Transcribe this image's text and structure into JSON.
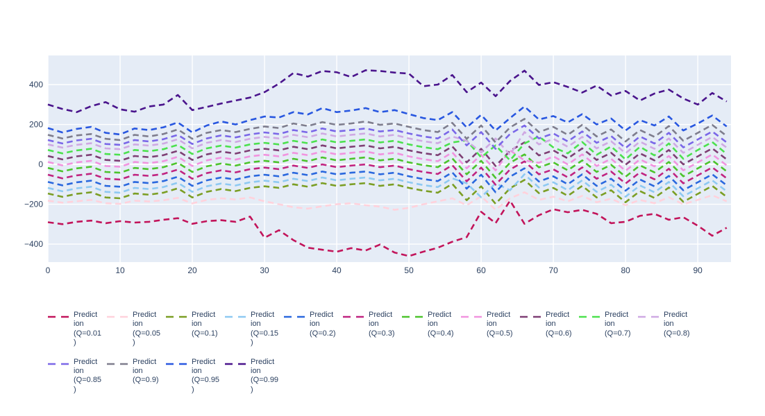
{
  "chart_data": {
    "type": "line",
    "title": "",
    "xlabel": "",
    "ylabel": "",
    "x_start": 0,
    "x_step": 2,
    "xlim": [
      0,
      94.6
    ],
    "ylim": [
      -490,
      546
    ],
    "x_ticks": [
      0,
      10,
      20,
      30,
      40,
      50,
      60,
      70,
      80,
      90
    ],
    "y_ticks": [
      400,
      200,
      0,
      -200,
      -400
    ],
    "grid": true,
    "legend_position": "bottom",
    "plot_bg_color": "#e5ecf6",
    "grid_color": "#ffffff",
    "tick_color": "#2a3f5f",
    "line_style": "dash",
    "series": [
      {
        "name": "Prediction (Q=0.01)",
        "quantile": 0.01,
        "color": "#c2145a",
        "legend_lines": [
          "Predict",
          "ion",
          "(Q=0.01",
          ")"
        ],
        "values": [
          -290,
          -300,
          -288,
          -282,
          -295,
          -285,
          -292,
          -288,
          -278,
          -270,
          -298,
          -285,
          -280,
          -288,
          -262,
          -368,
          -330,
          -380,
          -418,
          -428,
          -438,
          -420,
          -432,
          -402,
          -442,
          -460,
          -438,
          -418,
          -388,
          -365,
          -238,
          -295,
          -182,
          -298,
          -255,
          -225,
          -240,
          -228,
          -248,
          -295,
          -288,
          -258,
          -248,
          -278,
          -265,
          -308,
          -358,
          -318
        ]
      },
      {
        "name": "Prediction (Q=0.05)",
        "quantile": 0.05,
        "color": "#ffd2dc",
        "legend_lines": [
          "Predict",
          "ion",
          "(Q=0.05",
          ")"
        ],
        "values": [
          -182,
          -192,
          -185,
          -178,
          -195,
          -198,
          -182,
          -186,
          -180,
          -168,
          -196,
          -178,
          -170,
          -176,
          -166,
          -185,
          -200,
          -215,
          -222,
          -210,
          -200,
          -195,
          -205,
          -212,
          -228,
          -218,
          -200,
          -185,
          -170,
          -205,
          -160,
          -228,
          -170,
          -140,
          -178,
          -162,
          -185,
          -158,
          -190,
          -172,
          -205,
          -178,
          -195,
          -165,
          -200,
          -178,
          -155,
          -185
        ]
      },
      {
        "name": "Prediction (Q=0.1)",
        "quantile": 0.1,
        "color": "#7b9e24",
        "legend_lines": [
          "Predict",
          "ion",
          "(Q=0.1)"
        ],
        "values": [
          -146,
          -163,
          -148,
          -140,
          -166,
          -170,
          -146,
          -152,
          -142,
          -120,
          -166,
          -138,
          -124,
          -134,
          -118,
          -110,
          -118,
          -100,
          -112,
          -94,
          -108,
          -100,
          -94,
          -108,
          -100,
          -118,
          -132,
          -142,
          -98,
          -180,
          -110,
          -198,
          -120,
          -78,
          -144,
          -118,
          -158,
          -108,
          -166,
          -130,
          -190,
          -134,
          -168,
          -116,
          -188,
          -148,
          -108,
          -163
        ]
      },
      {
        "name": "Prediction (Q=0.15)",
        "quantile": 0.15,
        "color": "#8ec9f2",
        "legend_lines": [
          "Predict",
          "ion",
          "(Q=0.15",
          ")"
        ],
        "values": [
          -118,
          -135,
          -120,
          -112,
          -138,
          -142,
          -118,
          -124,
          -114,
          -92,
          -138,
          -110,
          -96,
          -106,
          -90,
          -82,
          -90,
          -72,
          -84,
          -66,
          -80,
          -72,
          -66,
          -80,
          -72,
          -90,
          -104,
          -114,
          -70,
          -95,
          -165,
          -95,
          -130,
          -50,
          -116,
          -90,
          -130,
          -80,
          -138,
          -102,
          -162,
          -106,
          -140,
          -88,
          -160,
          -120,
          -80,
          -135
        ]
      },
      {
        "name": "Prediction (Q=0.2)",
        "quantile": 0.2,
        "color": "#2a68de",
        "legend_lines": [
          "Predict",
          "ion",
          "(Q=0.2)"
        ],
        "values": [
          -88,
          -105,
          -90,
          -82,
          -108,
          -112,
          -88,
          -94,
          -84,
          -62,
          -108,
          -80,
          -66,
          -76,
          -60,
          -52,
          -60,
          -42,
          -54,
          -36,
          -50,
          -42,
          -36,
          -50,
          -42,
          -60,
          -74,
          -84,
          -40,
          -122,
          -52,
          -140,
          -62,
          -20,
          -86,
          -60,
          -100,
          -50,
          -108,
          -72,
          -132,
          -76,
          -110,
          -58,
          -130,
          -90,
          -50,
          -105
        ]
      },
      {
        "name": "Prediction (Q=0.3)",
        "quantile": 0.3,
        "color": "#c02480",
        "legend_lines": [
          "Predict",
          "ion",
          "(Q=0.3)"
        ],
        "values": [
          -52,
          -70,
          -55,
          -47,
          -72,
          -76,
          -52,
          -58,
          -48,
          -26,
          -72,
          -44,
          -30,
          -40,
          -24,
          -16,
          -24,
          -6,
          -18,
          0,
          -14,
          -6,
          0,
          -14,
          -6,
          -24,
          -38,
          -48,
          -4,
          -85,
          -16,
          -102,
          -26,
          15,
          -50,
          -25,
          -65,
          -15,
          -72,
          -36,
          -96,
          -40,
          -75,
          -22,
          -95,
          -55,
          -15,
          -70
        ]
      },
      {
        "name": "Prediction (Q=0.4)",
        "quantile": 0.4,
        "color": "#4cc42c",
        "legend_lines": [
          "Predict",
          "ion",
          "(Q=0.4)"
        ],
        "values": [
          -18,
          -35,
          -20,
          -12,
          -38,
          -42,
          -18,
          -24,
          -14,
          8,
          -38,
          -10,
          4,
          -6,
          10,
          18,
          10,
          28,
          16,
          35,
          20,
          28,
          35,
          20,
          28,
          10,
          -4,
          -14,
          30,
          -50,
          18,
          -68,
          8,
          50,
          -15,
          10,
          -30,
          20,
          -38,
          -2,
          -62,
          -5,
          -40,
          12,
          -60,
          -20,
          20,
          -35
        ]
      },
      {
        "name": "Prediction (Q=0.5)",
        "quantile": 0.5,
        "color": "#f193df",
        "legend_lines": [
          "Predict",
          "ion",
          "(Q=0.5)"
        ],
        "values": [
          12,
          -5,
          10,
          18,
          -8,
          -12,
          12,
          6,
          16,
          38,
          -8,
          20,
          34,
          24,
          40,
          48,
          40,
          58,
          46,
          65,
          50,
          58,
          65,
          50,
          58,
          40,
          26,
          16,
          60,
          -20,
          48,
          -30,
          70,
          20,
          8,
          40,
          0,
          50,
          -8,
          28,
          -32,
          25,
          -10,
          42,
          -30,
          10,
          50,
          -5
        ]
      },
      {
        "name": "Prediction (Q=0.6)",
        "quantile": 0.6,
        "color": "#7e3f74",
        "legend_lines": [
          "Predict",
          "ion",
          "(Q=0.6)"
        ],
        "values": [
          42,
          25,
          40,
          48,
          22,
          18,
          42,
          36,
          46,
          68,
          22,
          50,
          64,
          54,
          70,
          78,
          70,
          88,
          76,
          95,
          80,
          88,
          95,
          80,
          88,
          70,
          56,
          46,
          90,
          10,
          78,
          -8,
          68,
          110,
          45,
          70,
          30,
          80,
          22,
          58,
          -2,
          55,
          20,
          72,
          0,
          40,
          80,
          25
        ]
      },
      {
        "name": "Prediction (Q=0.7)",
        "quantile": 0.7,
        "color": "#4ce14e",
        "legend_lines": [
          "Predict",
          "ion",
          "(Q=0.7)"
        ],
        "values": [
          72,
          55,
          70,
          78,
          52,
          48,
          72,
          66,
          76,
          98,
          52,
          80,
          94,
          84,
          100,
          108,
          100,
          118,
          106,
          125,
          110,
          118,
          125,
          110,
          118,
          100,
          86,
          76,
          110,
          120,
          35,
          95,
          20,
          105,
          140,
          85,
          55,
          112,
          48,
          90,
          25,
          88,
          45,
          105,
          28,
          72,
          112,
          52
        ]
      },
      {
        "name": "Prediction (Q=0.8)",
        "quantile": 0.8,
        "color": "#cfa9e3",
        "legend_lines": [
          "Predict",
          "ion",
          "(Q=0.8)"
        ],
        "values": [
          100,
          84,
          98,
          106,
          80,
          76,
          100,
          94,
          104,
          126,
          80,
          108,
          122,
          112,
          128,
          138,
          130,
          148,
          136,
          155,
          140,
          148,
          155,
          140,
          148,
          130,
          116,
          106,
          140,
          118,
          60,
          130,
          48,
          162,
          100,
          128,
          88,
          138,
          80,
          116,
          56,
          114,
          78,
          130,
          58,
          98,
          138,
          84
        ]
      },
      {
        "name": "Prediction (Q=0.85)",
        "quantile": 0.85,
        "color": "#7a67e8",
        "legend_lines": [
          "Predict",
          "ion",
          "(Q=0.85",
          ")"
        ],
        "values": [
          122,
          105,
          120,
          128,
          102,
          98,
          122,
          115,
          126,
          148,
          102,
          130,
          145,
          135,
          150,
          160,
          152,
          172,
          160,
          180,
          165,
          172,
          180,
          165,
          172,
          155,
          140,
          130,
          175,
          95,
          162,
          78,
          152,
          195,
          130,
          155,
          115,
          165,
          108,
          142,
          82,
          140,
          105,
          158,
          85,
          125,
          165,
          110
        ]
      },
      {
        "name": "Prediction (Q=0.9)",
        "quantile": 0.9,
        "color": "#7e7d8d",
        "legend_lines": [
          "Predict",
          "ion",
          "(Q=0.9)"
        ],
        "values": [
          148,
          130,
          145,
          152,
          128,
          122,
          148,
          140,
          152,
          175,
          128,
          158,
          172,
          162,
          178,
          190,
          182,
          205,
          192,
          212,
          198,
          205,
          215,
          198,
          205,
          188,
          172,
          162,
          208,
          128,
          195,
          110,
          185,
          228,
          162,
          188,
          148,
          198,
          140,
          175,
          115,
          172,
          138,
          192,
          118,
          158,
          198,
          142
        ]
      },
      {
        "name": "Prediction (Q=0.95)",
        "quantile": 0.95,
        "color": "#2857e0",
        "legend_lines": [
          "Predict",
          "ion",
          "(Q=0.95",
          ")"
        ],
        "values": [
          182,
          160,
          178,
          188,
          158,
          150,
          180,
          172,
          186,
          210,
          160,
          195,
          215,
          200,
          222,
          240,
          235,
          262,
          250,
          282,
          262,
          270,
          282,
          262,
          272,
          252,
          232,
          222,
          262,
          185,
          248,
          170,
          232,
          290,
          225,
          242,
          210,
          252,
          200,
          230,
          170,
          222,
          195,
          240,
          170,
          205,
          245,
          190
        ]
      },
      {
        "name": "Prediction (Q=0.99)",
        "quantile": 0.99,
        "color": "#4a148c",
        "legend_lines": [
          "Predict",
          "ion",
          "(Q=0.99",
          ")"
        ],
        "values": [
          300,
          278,
          262,
          292,
          312,
          276,
          264,
          290,
          300,
          348,
          272,
          288,
          305,
          320,
          335,
          362,
          405,
          458,
          440,
          468,
          462,
          438,
          472,
          468,
          460,
          455,
          392,
          400,
          448,
          362,
          410,
          342,
          418,
          470,
          398,
          412,
          388,
          360,
          395,
          345,
          368,
          320,
          355,
          375,
          330,
          300,
          358,
          315
        ]
      }
    ]
  }
}
